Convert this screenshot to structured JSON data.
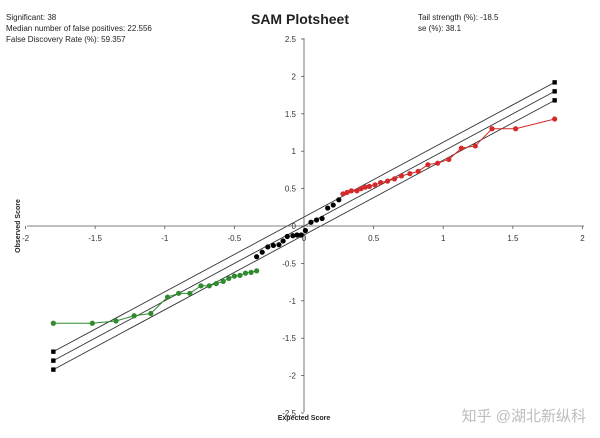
{
  "info_left": [
    "Significant: 38",
    "Median number of false positives: 22.556",
    "False Discovery Rate (%): 59.357"
  ],
  "info_right": [
    "Tail strength (%): -18.5",
    "se (%): 38.1"
  ],
  "watermark": "知乎 @湖北新纵科",
  "chart_data": {
    "type": "scatter",
    "title": "SAM Plotsheet",
    "xlabel": "Expected Score",
    "ylabel": "Observed Score",
    "xlim": [
      -2,
      2
    ],
    "ylim": [
      -2.5,
      2.5
    ],
    "x_ticks": [
      "-2",
      "-1.5",
      "-1",
      "-0.5",
      "0",
      "0.5",
      "1",
      "1.5",
      "2"
    ],
    "y_ticks": [
      "2.5",
      "2",
      "1.5",
      "1",
      "0.5",
      "0",
      "-0.5",
      "-1",
      "-1.5",
      "-2",
      "-2.5"
    ],
    "grid": false,
    "legend": "none",
    "reference_lines": [
      {
        "name": "upper",
        "from": [
          -1.8,
          -1.68
        ],
        "to": [
          1.8,
          1.92
        ]
      },
      {
        "name": "center",
        "from": [
          -1.8,
          -1.8
        ],
        "to": [
          1.8,
          1.8
        ]
      },
      {
        "name": "lower",
        "from": [
          -1.8,
          -1.92
        ],
        "to": [
          1.8,
          1.68
        ]
      }
    ],
    "series": [
      {
        "color": "#d42a2a",
        "connected": true,
        "x": [
          0.28,
          0.31,
          0.34,
          0.38,
          0.41,
          0.44,
          0.47,
          0.51,
          0.55,
          0.6,
          0.65,
          0.7,
          0.76,
          0.82,
          0.89,
          0.96,
          1.04,
          1.13,
          1.23,
          1.35,
          1.52,
          1.8
        ],
        "y": [
          0.43,
          0.45,
          0.47,
          0.47,
          0.5,
          0.52,
          0.53,
          0.55,
          0.58,
          0.6,
          0.63,
          0.67,
          0.7,
          0.73,
          0.82,
          0.84,
          0.89,
          1.04,
          1.07,
          1.3,
          1.3,
          1.43
        ]
      },
      {
        "color": "#000000",
        "connected": false,
        "x": [
          -0.34,
          -0.3,
          -0.26,
          -0.22,
          -0.18,
          -0.15,
          -0.12,
          -0.08,
          -0.05,
          -0.02,
          0.01,
          0.05,
          0.09,
          0.13,
          0.17,
          0.21,
          0.25
        ],
        "y": [
          -0.41,
          -0.35,
          -0.28,
          -0.26,
          -0.25,
          -0.2,
          -0.14,
          -0.13,
          -0.12,
          -0.12,
          -0.06,
          0.05,
          0.08,
          0.1,
          0.24,
          0.28,
          0.35
        ]
      },
      {
        "color": "#2e8b2e",
        "connected": true,
        "x": [
          -1.8,
          -1.52,
          -1.35,
          -1.22,
          -1.1,
          -0.98,
          -0.9,
          -0.82,
          -0.74,
          -0.68,
          -0.63,
          -0.58,
          -0.54,
          -0.5,
          -0.46,
          -0.42,
          -0.38,
          -0.34
        ],
        "y": [
          -1.3,
          -1.3,
          -1.27,
          -1.2,
          -1.17,
          -0.95,
          -0.9,
          -0.9,
          -0.8,
          -0.8,
          -0.77,
          -0.74,
          -0.7,
          -0.67,
          -0.66,
          -0.63,
          -0.62,
          -0.6
        ]
      }
    ],
    "endpoint_markers": {
      "color": "#000000",
      "x": [
        -1.8,
        -1.8,
        -1.8,
        1.8,
        1.8,
        1.8
      ],
      "y": [
        -1.68,
        -1.8,
        -1.92,
        1.92,
        1.8,
        1.68
      ]
    }
  }
}
